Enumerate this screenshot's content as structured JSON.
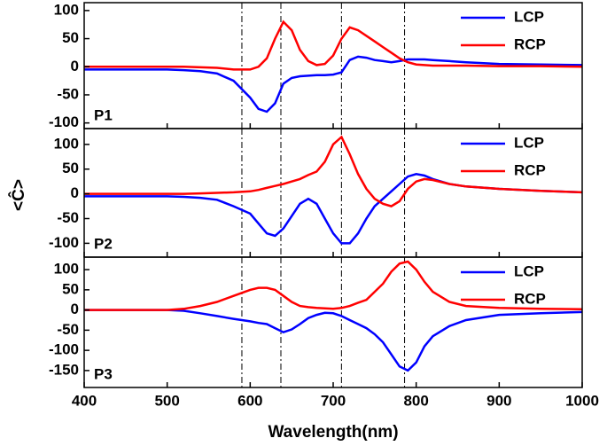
{
  "chart_data": [
    {
      "type": "line",
      "label": "P1",
      "legend": "upper right",
      "x": [
        400,
        450,
        500,
        520,
        540,
        560,
        580,
        600,
        610,
        620,
        630,
        640,
        650,
        660,
        670,
        680,
        690,
        700,
        710,
        720,
        730,
        740,
        750,
        760,
        770,
        780,
        790,
        800,
        810,
        820,
        840,
        860,
        900,
        950,
        1000
      ],
      "series": [
        {
          "name": "LCP",
          "color": "#0000ff",
          "values": [
            -5,
            -5,
            -5,
            -6,
            -8,
            -12,
            -25,
            -55,
            -75,
            -80,
            -65,
            -30,
            -20,
            -17,
            -16,
            -15,
            -15,
            -14,
            -10,
            12,
            18,
            16,
            12,
            10,
            8,
            10,
            13,
            13,
            13,
            12,
            10,
            8,
            5,
            4,
            3
          ]
        },
        {
          "name": "RCP",
          "color": "#ff0000",
          "values": [
            0,
            0,
            0,
            0,
            -1,
            -2,
            -5,
            -5,
            0,
            15,
            50,
            80,
            65,
            30,
            10,
            3,
            5,
            20,
            50,
            70,
            65,
            55,
            45,
            35,
            25,
            15,
            8,
            4,
            3,
            2,
            2,
            2,
            1,
            1,
            0
          ]
        }
      ],
      "ylim": [
        -110,
        114
      ],
      "yticks": [
        -100,
        -50,
        0,
        50,
        100
      ],
      "vlines": [
        590,
        637,
        710,
        786
      ]
    },
    {
      "type": "line",
      "label": "P2",
      "legend": "upper right",
      "ylabel": "<Ĉ>",
      "x": [
        400,
        450,
        500,
        520,
        540,
        560,
        580,
        600,
        610,
        620,
        630,
        640,
        650,
        660,
        670,
        680,
        690,
        700,
        710,
        720,
        730,
        740,
        750,
        760,
        770,
        780,
        790,
        800,
        810,
        820,
        840,
        860,
        900,
        950,
        1000
      ],
      "series": [
        {
          "name": "LCP",
          "color": "#0000ff",
          "values": [
            -5,
            -5,
            -5,
            -6,
            -8,
            -12,
            -25,
            -40,
            -60,
            -80,
            -85,
            -70,
            -45,
            -20,
            -10,
            -20,
            -50,
            -80,
            -100,
            -100,
            -80,
            -50,
            -25,
            -10,
            5,
            20,
            35,
            40,
            37,
            30,
            20,
            15,
            10,
            6,
            3
          ]
        },
        {
          "name": "RCP",
          "color": "#ff0000",
          "values": [
            0,
            0,
            0,
            0,
            1,
            2,
            3,
            5,
            8,
            12,
            16,
            20,
            25,
            30,
            38,
            45,
            65,
            100,
            115,
            80,
            40,
            10,
            -10,
            -20,
            -25,
            -15,
            10,
            25,
            30,
            28,
            20,
            15,
            10,
            6,
            3
          ]
        }
      ],
      "ylim": [
        -128,
        132
      ],
      "yticks": [
        -100,
        -50,
        0,
        50,
        100
      ],
      "vlines": [
        590,
        637,
        710,
        786
      ]
    },
    {
      "type": "line",
      "label": "P3",
      "legend": "upper right",
      "xlabel": "Wavelength(nm)",
      "x": [
        400,
        450,
        500,
        520,
        540,
        560,
        580,
        600,
        610,
        620,
        630,
        640,
        650,
        660,
        670,
        680,
        690,
        700,
        710,
        720,
        730,
        740,
        750,
        760,
        770,
        780,
        790,
        800,
        810,
        820,
        840,
        860,
        900,
        950,
        1000
      ],
      "series": [
        {
          "name": "LCP",
          "color": "#0000ff",
          "values": [
            0,
            0,
            0,
            -2,
            -8,
            -15,
            -22,
            -28,
            -32,
            -35,
            -45,
            -55,
            -48,
            -35,
            -20,
            -12,
            -7,
            -8,
            -15,
            -25,
            -35,
            -45,
            -60,
            -80,
            -110,
            -140,
            -150,
            -130,
            -90,
            -65,
            -40,
            -25,
            -12,
            -8,
            -5
          ]
        },
        {
          "name": "RCP",
          "color": "#ff0000",
          "values": [
            0,
            0,
            0,
            3,
            10,
            20,
            35,
            50,
            55,
            55,
            50,
            35,
            20,
            10,
            7,
            5,
            4,
            3,
            5,
            10,
            18,
            25,
            45,
            65,
            95,
            115,
            120,
            100,
            70,
            45,
            20,
            10,
            5,
            3,
            2
          ]
        }
      ],
      "ylim": [
        -192,
        131
      ],
      "yticks": [
        -150,
        -100,
        -50,
        0,
        50,
        100
      ],
      "xlim": [
        400,
        1000
      ],
      "xticks": [
        400,
        500,
        600,
        700,
        800,
        900,
        1000
      ],
      "vlines": [
        590,
        637,
        710,
        786
      ]
    }
  ]
}
